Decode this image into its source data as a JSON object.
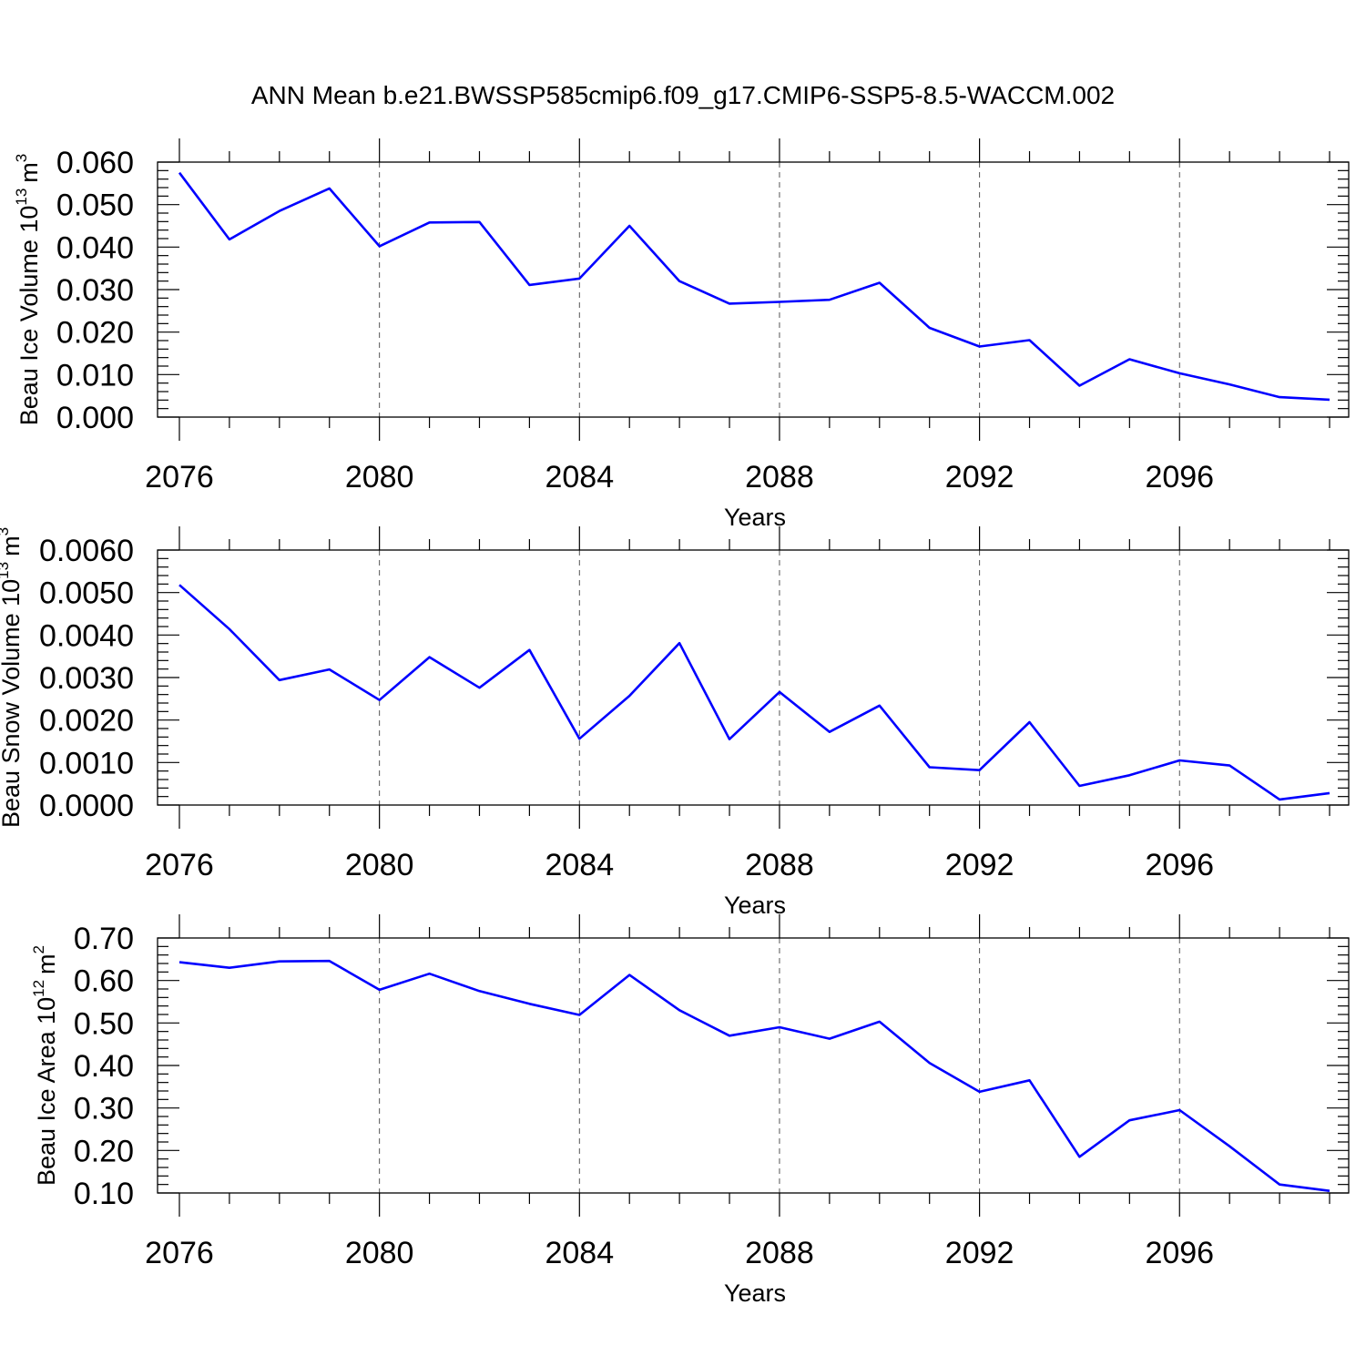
{
  "title": "ANN Mean b.e21.BWSSP585cmip6.f09_g17.CMIP6-SSP5-8.5-WACCM.002",
  "chart_data": [
    {
      "type": "line",
      "ylabel": "Beau Ice Volume 10",
      "ylabel_exponent": "13",
      "ylabel_unit": "m",
      "ylabel_unit_exponent": "3",
      "xlabel": "Years",
      "xlim": [
        2076,
        2099
      ],
      "ylim": [
        0.0,
        0.06
      ],
      "x_ticks": [
        "2076",
        "2080",
        "2084",
        "2088",
        "2092",
        "2096"
      ],
      "y_ticks": [
        "0.000",
        "0.010",
        "0.020",
        "0.030",
        "0.040",
        "0.050",
        "0.060"
      ],
      "x": [
        2076,
        2077,
        2078,
        2079,
        2080,
        2081,
        2082,
        2083,
        2084,
        2085,
        2086,
        2087,
        2088,
        2089,
        2090,
        2091,
        2092,
        2093,
        2094,
        2095,
        2096,
        2097,
        2098,
        2099
      ],
      "series": [
        {
          "values": [
            0.0575,
            0.0418,
            0.0485,
            0.0538,
            0.0402,
            0.0458,
            0.0459,
            0.0311,
            0.0326,
            0.045,
            0.032,
            0.0267,
            0.0271,
            0.0276,
            0.0316,
            0.021,
            0.0166,
            0.0181,
            0.0074,
            0.0136,
            0.0103,
            0.0077,
            0.0047,
            0.0041
          ]
        }
      ]
    },
    {
      "type": "line",
      "ylabel": "Beau Snow Volume 10",
      "ylabel_exponent": "13",
      "ylabel_unit": "m",
      "ylabel_unit_exponent": "3",
      "xlabel": "Years",
      "xlim": [
        2076,
        2099
      ],
      "ylim": [
        0.0,
        0.006
      ],
      "x_ticks": [
        "2076",
        "2080",
        "2084",
        "2088",
        "2092",
        "2096"
      ],
      "y_ticks": [
        "0.0000",
        "0.0010",
        "0.0020",
        "0.0030",
        "0.0040",
        "0.0050",
        "0.0060"
      ],
      "x": [
        2076,
        2077,
        2078,
        2079,
        2080,
        2081,
        2082,
        2083,
        2084,
        2085,
        2086,
        2087,
        2088,
        2089,
        2090,
        2091,
        2092,
        2093,
        2094,
        2095,
        2096,
        2097,
        2098,
        2099
      ],
      "series": [
        {
          "values": [
            0.00518,
            0.00414,
            0.00294,
            0.00319,
            0.00247,
            0.00348,
            0.00276,
            0.00365,
            0.00156,
            0.00257,
            0.00381,
            0.00155,
            0.00266,
            0.00172,
            0.00234,
            0.00089,
            0.00082,
            0.00195,
            0.00045,
            0.0007,
            0.00105,
            0.00093,
            0.00013,
            0.00028
          ]
        }
      ]
    },
    {
      "type": "line",
      "ylabel": "Beau Ice Area 10",
      "ylabel_exponent": "12",
      "ylabel_unit": "m",
      "ylabel_unit_exponent": "2",
      "xlabel": "Years",
      "xlim": [
        2076,
        2099
      ],
      "ylim": [
        0.1,
        0.7
      ],
      "x_ticks": [
        "2076",
        "2080",
        "2084",
        "2088",
        "2092",
        "2096"
      ],
      "y_ticks": [
        "0.10",
        "0.20",
        "0.30",
        "0.40",
        "0.50",
        "0.60",
        "0.70"
      ],
      "x": [
        2076,
        2077,
        2078,
        2079,
        2080,
        2081,
        2082,
        2083,
        2084,
        2085,
        2086,
        2087,
        2088,
        2089,
        2090,
        2091,
        2092,
        2093,
        2094,
        2095,
        2096,
        2097,
        2098,
        2099
      ],
      "series": [
        {
          "values": [
            0.643,
            0.63,
            0.645,
            0.646,
            0.578,
            0.616,
            0.575,
            0.545,
            0.519,
            0.613,
            0.53,
            0.47,
            0.49,
            0.463,
            0.503,
            0.406,
            0.338,
            0.365,
            0.185,
            0.271,
            0.295,
            0.21,
            0.12,
            0.105
          ]
        }
      ]
    }
  ]
}
